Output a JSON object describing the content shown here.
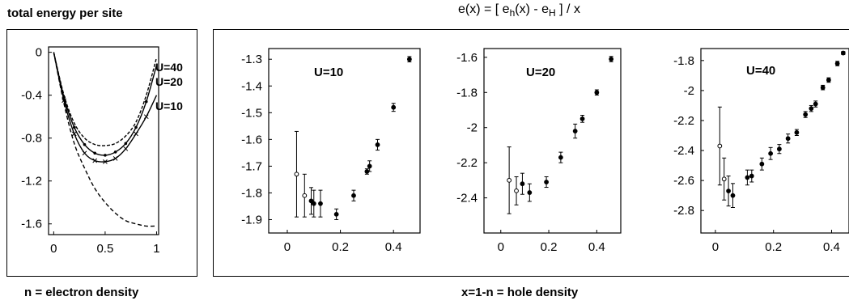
{
  "headings": {
    "left_title": "total energy per site",
    "left_xlabel": "n = electron density",
    "right_xlabel": "x=1-n = hole density",
    "right_title": {
      "p1": "e(x) = [ e",
      "sub1": "h",
      "p2": "(x) - e",
      "sub2": "H",
      "p3": " ] / x"
    }
  },
  "chart_data": [
    {
      "type": "line",
      "title": "",
      "xlabel": "n = electron density",
      "ylabel": "total energy per site",
      "xlim": [
        -0.05,
        1.02
      ],
      "ylim": [
        -1.7,
        0.05
      ],
      "xticks": [
        0,
        0.5,
        1
      ],
      "xtick_labels": [
        "0",
        "0.5",
        "1"
      ],
      "yticks": [
        0,
        -0.4,
        -0.8,
        -1.2,
        -1.6
      ],
      "ytick_labels": [
        "0",
        "-0.4",
        "-0.8",
        "-1.2",
        "-1.6"
      ],
      "series": [
        {
          "name": "U=40",
          "x": [
            0,
            0.1,
            0.2,
            0.3,
            0.4,
            0.5,
            0.6,
            0.7,
            0.8,
            0.9,
            1.0
          ],
          "y": [
            0.0,
            -0.4,
            -0.66,
            -0.8,
            -0.86,
            -0.87,
            -0.85,
            -0.78,
            -0.65,
            -0.4,
            -0.05
          ]
        },
        {
          "name": "U=20",
          "x": [
            0,
            0.1,
            0.2,
            0.3,
            0.4,
            0.5,
            0.6,
            0.7,
            0.8,
            0.9,
            1.0
          ],
          "y": [
            0.0,
            -0.42,
            -0.7,
            -0.86,
            -0.94,
            -0.96,
            -0.93,
            -0.85,
            -0.7,
            -0.46,
            -0.12
          ]
        },
        {
          "name": "U=10",
          "x": [
            0,
            0.1,
            0.2,
            0.3,
            0.4,
            0.5,
            0.6,
            0.7,
            0.8,
            0.9,
            1.0
          ],
          "y": [
            0.0,
            -0.45,
            -0.76,
            -0.94,
            -1.01,
            -1.02,
            -0.99,
            -0.9,
            -0.76,
            -0.6,
            -0.4
          ]
        },
        {
          "name": "",
          "x": [
            0,
            0.1,
            0.2,
            0.3,
            0.4,
            0.5,
            0.6,
            0.7,
            0.8,
            0.9,
            1.0
          ],
          "y": [
            0.0,
            -0.48,
            -0.85,
            -1.08,
            -1.27,
            -1.4,
            -1.5,
            -1.57,
            -1.6,
            -1.62,
            -1.62
          ]
        }
      ],
      "legend": [
        "U=40",
        "U=20",
        "U=10"
      ]
    },
    {
      "type": "scatter",
      "title": "U=10",
      "xlim": [
        -0.07,
        0.5
      ],
      "ylim": [
        -1.95,
        -1.26
      ],
      "xticks": [
        0,
        0.2,
        0.4
      ],
      "xtick_labels": [
        "0",
        "0.2",
        "0.4"
      ],
      "yticks": [
        -1.3,
        -1.4,
        -1.5,
        -1.6,
        -1.7,
        -1.8,
        -1.9
      ],
      "ytick_labels": [
        "-1.3",
        "-1.4",
        "-1.5",
        "-1.6",
        "-1.7",
        "-1.8",
        "-1.9"
      ],
      "x": [
        0.035,
        0.065,
        0.09,
        0.1,
        0.125,
        0.185,
        0.25,
        0.3,
        0.31,
        0.34,
        0.4,
        0.46
      ],
      "y": [
        -1.73,
        -1.81,
        -1.83,
        -1.84,
        -1.84,
        -1.88,
        -1.81,
        -1.72,
        -1.7,
        -1.62,
        -1.48,
        -1.3
      ],
      "err": [
        0.16,
        0.08,
        0.05,
        0.05,
        0.05,
        0.02,
        0.02,
        0.01,
        0.02,
        0.02,
        0.015,
        0.01
      ]
    },
    {
      "type": "scatter",
      "title": "U=20",
      "xlim": [
        -0.07,
        0.5
      ],
      "ylim": [
        -2.6,
        -1.55
      ],
      "xticks": [
        0,
        0.2,
        0.4
      ],
      "xtick_labels": [
        "0",
        "0.2",
        "0.4"
      ],
      "yticks": [
        -1.6,
        -1.8,
        -2,
        -2.2,
        -2.4
      ],
      "ytick_labels": [
        "-1.6",
        "-1.8",
        "-2",
        "-2.2",
        "-2.4"
      ],
      "x": [
        0.035,
        0.065,
        0.09,
        0.12,
        0.19,
        0.25,
        0.31,
        0.34,
        0.4,
        0.46
      ],
      "y": [
        -2.3,
        -2.36,
        -2.32,
        -2.37,
        -2.31,
        -2.17,
        -2.02,
        -1.95,
        -1.8,
        -1.61
      ],
      "err": [
        0.19,
        0.08,
        0.06,
        0.05,
        0.03,
        0.03,
        0.04,
        0.02,
        0.015,
        0.015
      ]
    },
    {
      "type": "scatter",
      "title": "U=40",
      "xlim": [
        -0.05,
        0.46
      ],
      "ylim": [
        -2.95,
        -1.72
      ],
      "xticks": [
        0,
        0.2,
        0.4
      ],
      "xtick_labels": [
        "0",
        "0.2",
        "0.4"
      ],
      "yticks": [
        -1.8,
        -2,
        -2.2,
        -2.4,
        -2.6,
        -2.8
      ],
      "ytick_labels": [
        "-1.8",
        "-2",
        "-2.2",
        "-2.4",
        "-2.6",
        "-2.8"
      ],
      "x": [
        0.015,
        0.03,
        0.045,
        0.06,
        0.11,
        0.125,
        0.16,
        0.19,
        0.22,
        0.25,
        0.28,
        0.31,
        0.33,
        0.345,
        0.37,
        0.39,
        0.42,
        0.44
      ],
      "y": [
        -2.37,
        -2.59,
        -2.67,
        -2.7,
        -2.58,
        -2.57,
        -2.49,
        -2.42,
        -2.39,
        -2.32,
        -2.28,
        -2.16,
        -2.12,
        -2.09,
        -1.98,
        -1.93,
        -1.82,
        -1.75
      ],
      "err": [
        0.26,
        0.14,
        0.1,
        0.08,
        0.05,
        0.04,
        0.04,
        0.04,
        0.03,
        0.03,
        0.02,
        0.02,
        0.02,
        0.02,
        0.015,
        0.015,
        0.015,
        0.01
      ]
    }
  ]
}
